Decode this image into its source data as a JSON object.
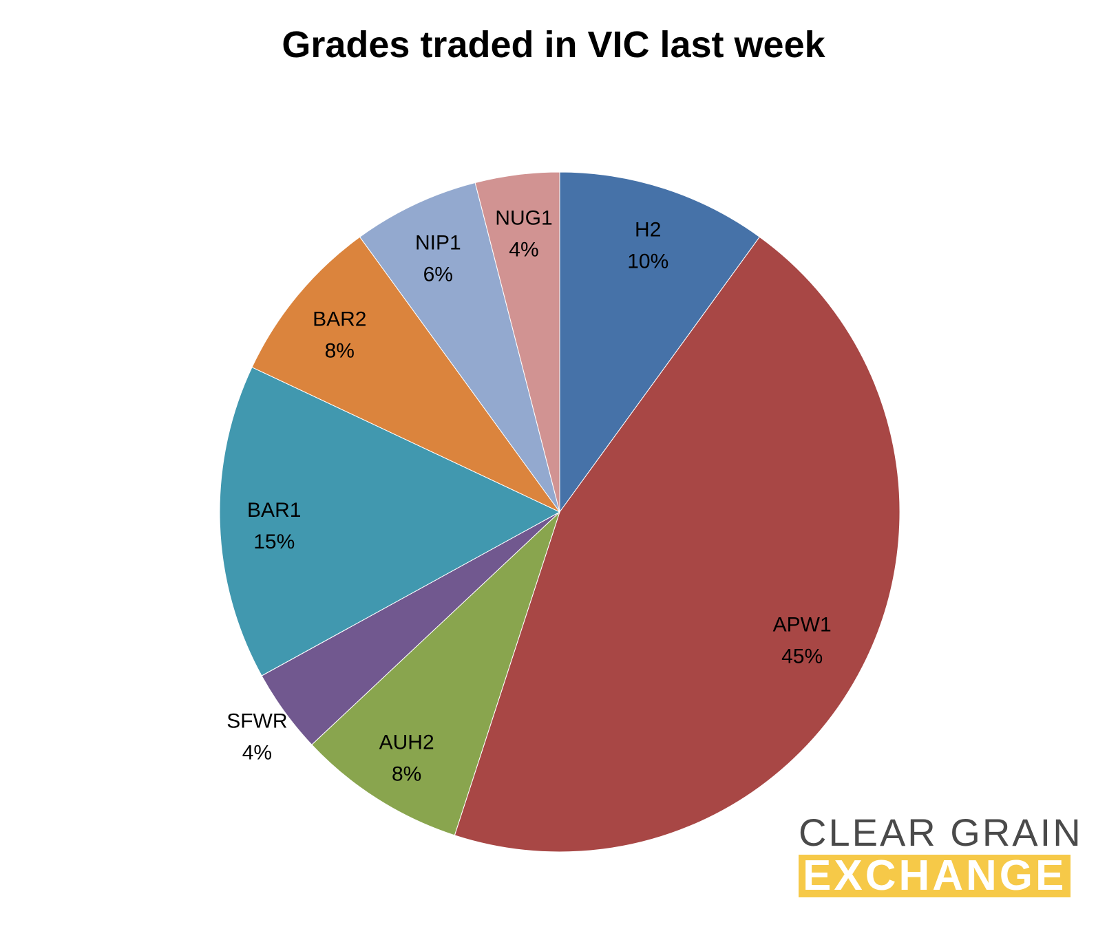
{
  "chart_data": {
    "type": "pie",
    "title": "Grades traded in VIC last week",
    "start_angle_deg": 0,
    "direction": "clockwise",
    "slices": [
      {
        "label": "H2",
        "value": 10,
        "percent_label": "10%",
        "color": "#4672A8"
      },
      {
        "label": "APW1",
        "value": 45,
        "percent_label": "45%",
        "color": "#A84745"
      },
      {
        "label": "AUH2",
        "value": 8,
        "percent_label": "8%",
        "color": "#89A54E"
      },
      {
        "label": "SFWR",
        "value": 4,
        "percent_label": "4%",
        "color": "#71588F"
      },
      {
        "label": "BAR1",
        "value": 15,
        "percent_label": "15%",
        "color": "#4198AF"
      },
      {
        "label": "BAR2",
        "value": 8,
        "percent_label": "8%",
        "color": "#DB843D"
      },
      {
        "label": "NIP1",
        "value": 6,
        "percent_label": "6%",
        "color": "#93A9CF"
      },
      {
        "label": "NUG1",
        "value": 4,
        "percent_label": "4%",
        "color": "#D19392"
      }
    ]
  },
  "logo": {
    "line1": "CLEAR GRAIN",
    "line2": "EXCHANGE",
    "line1_color": "#4a4a4a",
    "line2_bg_color": "#f6c948"
  }
}
